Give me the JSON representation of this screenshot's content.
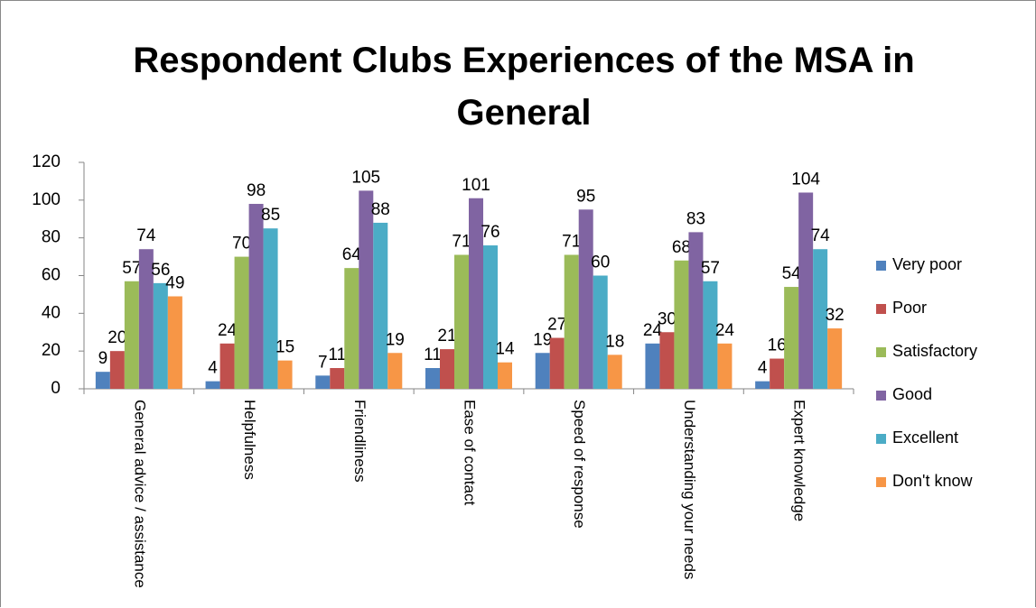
{
  "chart_data": {
    "type": "bar",
    "title": "Respondent Clubs Experiences of the MSA in General",
    "categories": [
      "General advice / assistance",
      "Helpfulness",
      "Friendliness",
      "Ease of contact",
      "Speed of response",
      "Understanding your needs",
      "Expert knowledge"
    ],
    "series": [
      {
        "name": "Very poor",
        "color": "#4f81bd",
        "values": [
          9,
          4,
          7,
          11,
          19,
          24,
          4
        ]
      },
      {
        "name": "Poor",
        "color": "#c0504d",
        "values": [
          20,
          24,
          11,
          21,
          27,
          30,
          16
        ]
      },
      {
        "name": "Satisfactory",
        "color": "#9bbb59",
        "values": [
          57,
          70,
          64,
          71,
          71,
          68,
          54
        ]
      },
      {
        "name": "Good",
        "color": "#8064a2",
        "values": [
          74,
          98,
          105,
          101,
          95,
          83,
          104
        ]
      },
      {
        "name": "Excellent",
        "color": "#4bacc6",
        "values": [
          56,
          85,
          88,
          76,
          60,
          57,
          74
        ]
      },
      {
        "name": "Don't know",
        "color": "#f79646",
        "values": [
          49,
          15,
          19,
          14,
          18,
          24,
          32
        ]
      }
    ],
    "ylim": [
      0,
      120
    ],
    "yticks": [
      0,
      20,
      40,
      60,
      80,
      100,
      120
    ],
    "grid": false,
    "legend": "right"
  }
}
